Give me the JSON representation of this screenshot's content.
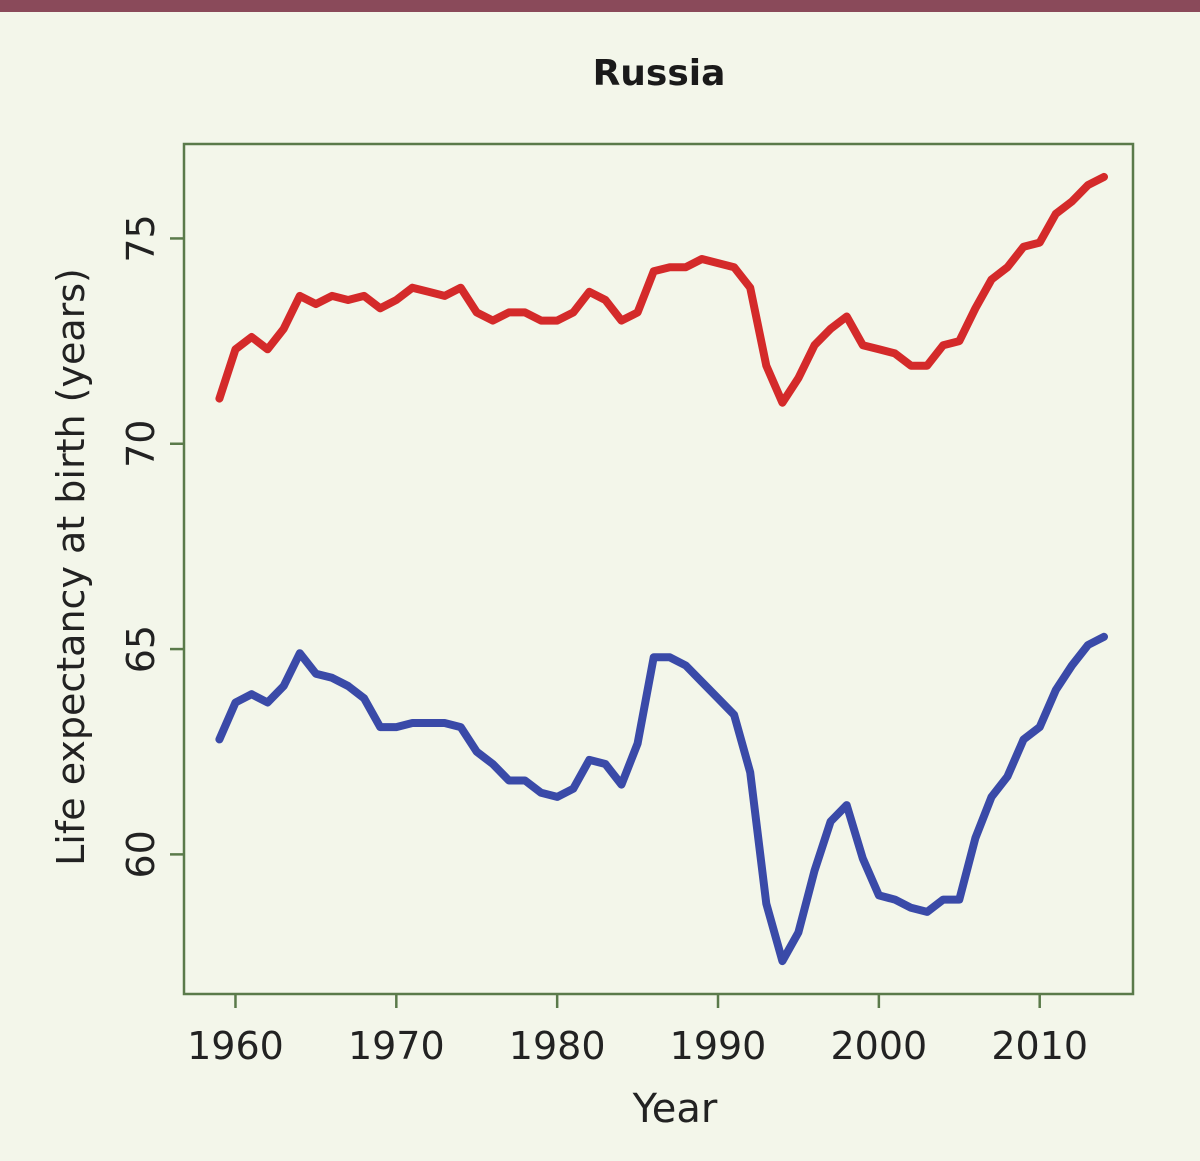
{
  "chart_data": {
    "type": "line",
    "title": "Russia",
    "xlabel": "Year",
    "ylabel": "Life expectancy at birth (years)",
    "xlim": [
      1956.8,
      2015.8
    ],
    "ylim": [
      56.6,
      77.3
    ],
    "xticks": [
      "1960",
      "1970",
      "1980",
      "1990",
      "2000",
      "2010"
    ],
    "yticks": [
      "60",
      "65",
      "70",
      "75"
    ],
    "grid": false,
    "legend": "none",
    "x": [
      1959,
      1960,
      1961,
      1962,
      1963,
      1964,
      1965,
      1966,
      1967,
      1968,
      1969,
      1970,
      1971,
      1972,
      1973,
      1974,
      1975,
      1976,
      1977,
      1978,
      1979,
      1980,
      1981,
      1982,
      1983,
      1984,
      1985,
      1986,
      1987,
      1988,
      1989,
      1990,
      1991,
      1992,
      1993,
      1994,
      1995,
      1996,
      1997,
      1998,
      1999,
      2000,
      2001,
      2002,
      2003,
      2004,
      2005,
      2006,
      2007,
      2008,
      2009,
      2010,
      2011,
      2012,
      2013,
      2014
    ],
    "series": [
      {
        "color": "#d42a2a",
        "values": [
          71.1,
          72.3,
          72.6,
          72.3,
          72.8,
          73.6,
          73.4,
          73.6,
          73.5,
          73.6,
          73.3,
          73.5,
          73.8,
          73.7,
          73.6,
          73.8,
          73.2,
          73.0,
          73.2,
          73.2,
          73.0,
          73.0,
          73.2,
          73.7,
          73.5,
          73.0,
          73.2,
          74.2,
          74.3,
          74.3,
          74.5,
          74.4,
          74.3,
          73.8,
          71.9,
          71.0,
          71.6,
          72.4,
          72.8,
          73.1,
          72.4,
          72.3,
          72.2,
          71.9,
          71.9,
          72.4,
          72.5,
          73.3,
          74.0,
          74.3,
          74.8,
          74.9,
          75.6,
          75.9,
          76.3,
          76.5
        ]
      },
      {
        "color": "#3a4aa8",
        "values": [
          62.8,
          63.7,
          63.9,
          63.7,
          64.1,
          64.9,
          64.4,
          64.3,
          64.1,
          63.8,
          63.1,
          63.1,
          63.2,
          63.2,
          63.2,
          63.1,
          62.5,
          62.2,
          61.8,
          61.8,
          61.5,
          61.4,
          61.6,
          62.3,
          62.2,
          61.7,
          62.7,
          64.8,
          64.8,
          64.6,
          64.2,
          63.8,
          63.4,
          62.0,
          58.8,
          57.4,
          58.1,
          59.6,
          60.8,
          61.2,
          59.9,
          59.0,
          58.9,
          58.7,
          58.6,
          58.9,
          58.9,
          60.4,
          61.4,
          61.9,
          62.8,
          63.1,
          64.0,
          64.6,
          65.1,
          65.3
        ]
      }
    ]
  }
}
